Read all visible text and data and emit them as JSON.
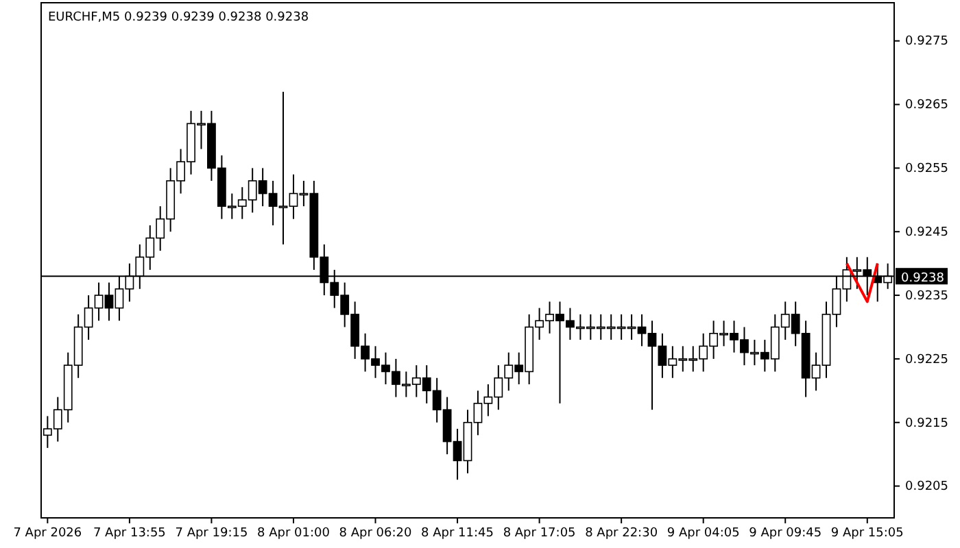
{
  "chart_data": {
    "type": "candlestick",
    "title": "EURCHF,M5  0.9239 0.9239 0.9238 0.9238",
    "categories": [
      "7 Apr 2026",
      null,
      null,
      null,
      null,
      null,
      null,
      null,
      "7 Apr 13:55",
      null,
      null,
      null,
      null,
      null,
      null,
      null,
      "7 Apr 19:15",
      null,
      null,
      null,
      null,
      null,
      null,
      null,
      "8 Apr 01:00",
      null,
      null,
      null,
      null,
      null,
      null,
      null,
      "8 Apr 06:20",
      null,
      null,
      null,
      null,
      null,
      null,
      null,
      "8 Apr 11:45",
      null,
      null,
      null,
      null,
      null,
      null,
      null,
      "8 Apr 17:05",
      null,
      null,
      null,
      null,
      null,
      null,
      null,
      "8 Apr 22:30",
      null,
      null,
      null,
      null,
      null,
      null,
      null,
      "9 Apr 04:05",
      null,
      null,
      null,
      null,
      null,
      null,
      null,
      "9 Apr 09:45",
      null,
      null,
      null,
      null,
      null,
      null,
      null,
      "9 Apr 15:05",
      null,
      null
    ],
    "ohlc": [
      [
        0.9213,
        0.9216,
        0.9211,
        0.9214
      ],
      [
        0.9214,
        0.9219,
        0.9212,
        0.9217
      ],
      [
        0.9217,
        0.9226,
        0.9215,
        0.9224
      ],
      [
        0.9224,
        0.9232,
        0.9222,
        0.923
      ],
      [
        0.923,
        0.9235,
        0.9228,
        0.9233
      ],
      [
        0.9233,
        0.9237,
        0.9231,
        0.9235
      ],
      [
        0.9235,
        0.9237,
        0.9231,
        0.9233
      ],
      [
        0.9233,
        0.9238,
        0.9231,
        0.9236
      ],
      [
        0.9236,
        0.924,
        0.9234,
        0.9238
      ],
      [
        0.9238,
        0.9243,
        0.9236,
        0.9241
      ],
      [
        0.9241,
        0.9246,
        0.9239,
        0.9244
      ],
      [
        0.9244,
        0.9249,
        0.9242,
        0.9247
      ],
      [
        0.9247,
        0.9255,
        0.9245,
        0.9253
      ],
      [
        0.9253,
        0.9258,
        0.9251,
        0.9256
      ],
      [
        0.9256,
        0.9264,
        0.9254,
        0.9262
      ],
      [
        0.9262,
        0.9264,
        0.9258,
        0.9262
      ],
      [
        0.9262,
        0.9264,
        0.9253,
        0.9255
      ],
      [
        0.9255,
        0.9257,
        0.9247,
        0.9249
      ],
      [
        0.9249,
        0.9251,
        0.9247,
        0.9249
      ],
      [
        0.9249,
        0.9252,
        0.9247,
        0.925
      ],
      [
        0.925,
        0.9255,
        0.9248,
        0.9253
      ],
      [
        0.9253,
        0.9255,
        0.9249,
        0.9251
      ],
      [
        0.9251,
        0.9253,
        0.9246,
        0.9249
      ],
      [
        0.9249,
        0.9267,
        0.9243,
        0.9249
      ],
      [
        0.9249,
        0.9254,
        0.9247,
        0.9251
      ],
      [
        0.9251,
        0.9253,
        0.9249,
        0.9251
      ],
      [
        0.9251,
        0.9253,
        0.9239,
        0.9241
      ],
      [
        0.9241,
        0.9243,
        0.9235,
        0.9237
      ],
      [
        0.9237,
        0.9239,
        0.9233,
        0.9235
      ],
      [
        0.9235,
        0.9237,
        0.923,
        0.9232
      ],
      [
        0.9232,
        0.9234,
        0.9225,
        0.9227
      ],
      [
        0.9227,
        0.9229,
        0.9223,
        0.9225
      ],
      [
        0.9225,
        0.9227,
        0.9222,
        0.9224
      ],
      [
        0.9224,
        0.9226,
        0.9221,
        0.9223
      ],
      [
        0.9223,
        0.9225,
        0.9219,
        0.9221
      ],
      [
        0.9221,
        0.9223,
        0.9219,
        0.9221
      ],
      [
        0.9221,
        0.9224,
        0.9219,
        0.9222
      ],
      [
        0.9222,
        0.9224,
        0.9218,
        0.922
      ],
      [
        0.922,
        0.9222,
        0.9215,
        0.9217
      ],
      [
        0.9217,
        0.9219,
        0.921,
        0.9212
      ],
      [
        0.9212,
        0.9214,
        0.9206,
        0.9209
      ],
      [
        0.9209,
        0.9217,
        0.9207,
        0.9215
      ],
      [
        0.9215,
        0.922,
        0.9213,
        0.9218
      ],
      [
        0.9218,
        0.9221,
        0.9216,
        0.9219
      ],
      [
        0.9219,
        0.9224,
        0.9217,
        0.9222
      ],
      [
        0.9222,
        0.9226,
        0.922,
        0.9224
      ],
      [
        0.9224,
        0.9226,
        0.9221,
        0.9223
      ],
      [
        0.9223,
        0.9232,
        0.9221,
        0.923
      ],
      [
        0.923,
        0.9233,
        0.9228,
        0.9231
      ],
      [
        0.9231,
        0.9234,
        0.9229,
        0.9232
      ],
      [
        0.9232,
        0.9234,
        0.9218,
        0.9231
      ],
      [
        0.9231,
        0.9233,
        0.9228,
        0.923
      ],
      [
        0.923,
        0.9232,
        0.9228,
        0.923
      ],
      [
        0.923,
        0.9232,
        0.9228,
        0.923
      ],
      [
        0.923,
        0.9232,
        0.9228,
        0.923
      ],
      [
        0.923,
        0.9232,
        0.9228,
        0.923
      ],
      [
        0.923,
        0.9232,
        0.9228,
        0.923
      ],
      [
        0.923,
        0.9232,
        0.9228,
        0.923
      ],
      [
        0.923,
        0.9232,
        0.9227,
        0.9229
      ],
      [
        0.9229,
        0.9231,
        0.9217,
        0.9227
      ],
      [
        0.9227,
        0.9229,
        0.9222,
        0.9224
      ],
      [
        0.9224,
        0.9227,
        0.9222,
        0.9225
      ],
      [
        0.9225,
        0.9227,
        0.9223,
        0.9225
      ],
      [
        0.9225,
        0.9227,
        0.9223,
        0.9225
      ],
      [
        0.9225,
        0.9229,
        0.9223,
        0.9227
      ],
      [
        0.9227,
        0.9231,
        0.9225,
        0.9229
      ],
      [
        0.9229,
        0.9231,
        0.9227,
        0.9229
      ],
      [
        0.9229,
        0.9231,
        0.9226,
        0.9228
      ],
      [
        0.9228,
        0.923,
        0.9224,
        0.9226
      ],
      [
        0.9226,
        0.9228,
        0.9224,
        0.9226
      ],
      [
        0.9226,
        0.9228,
        0.9223,
        0.9225
      ],
      [
        0.9225,
        0.9232,
        0.9223,
        0.923
      ],
      [
        0.923,
        0.9234,
        0.9228,
        0.9232
      ],
      [
        0.9232,
        0.9234,
        0.9227,
        0.9229
      ],
      [
        0.9229,
        0.9231,
        0.9219,
        0.9222
      ],
      [
        0.9222,
        0.9226,
        0.922,
        0.9224
      ],
      [
        0.9224,
        0.9234,
        0.9222,
        0.9232
      ],
      [
        0.9232,
        0.9238,
        0.923,
        0.9236
      ],
      [
        0.9236,
        0.9241,
        0.9234,
        0.9239
      ],
      [
        0.9239,
        0.9241,
        0.9236,
        0.9239
      ],
      [
        0.9239,
        0.9241,
        0.9235,
        0.9238
      ],
      [
        0.9238,
        0.924,
        0.9234,
        0.9237
      ],
      [
        0.9237,
        0.924,
        0.9236,
        0.9238
      ]
    ],
    "series": [
      {
        "type": "line",
        "color": "#ff0000",
        "values": [
          null,
          null,
          null,
          null,
          null,
          null,
          null,
          null,
          null,
          null,
          null,
          null,
          null,
          null,
          null,
          null,
          null,
          null,
          null,
          null,
          null,
          null,
          null,
          null,
          null,
          null,
          null,
          null,
          null,
          null,
          null,
          null,
          null,
          null,
          null,
          null,
          null,
          null,
          null,
          null,
          null,
          null,
          null,
          null,
          null,
          null,
          null,
          null,
          null,
          null,
          null,
          null,
          null,
          null,
          null,
          null,
          null,
          null,
          null,
          null,
          null,
          null,
          null,
          null,
          null,
          null,
          null,
          null,
          null,
          null,
          null,
          null,
          null,
          null,
          null,
          null,
          null,
          null,
          0.924,
          null,
          0.9234,
          0.924,
          null
        ]
      }
    ],
    "ylim": [
      0.92,
      0.9281
    ],
    "yticks": [
      0.9205,
      0.9215,
      0.9225,
      0.9235,
      0.9245,
      0.9255,
      0.9265,
      0.9275
    ],
    "ref_lines": [
      {
        "axis": "y",
        "value": 0.9238,
        "label": "0.9238",
        "color": "#000000"
      }
    ],
    "grid": false
  }
}
